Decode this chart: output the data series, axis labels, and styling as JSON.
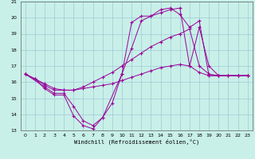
{
  "xlabel": "Windchill (Refroidissement éolien,°C)",
  "background_color": "#c8f0e8",
  "grid_color": "#a0c8d8",
  "line_color": "#990099",
  "xlim": [
    -0.5,
    23.5
  ],
  "ylim": [
    13,
    21
  ],
  "yticks": [
    13,
    14,
    15,
    16,
    17,
    18,
    19,
    20,
    21
  ],
  "xticks": [
    0,
    1,
    2,
    3,
    4,
    5,
    6,
    7,
    8,
    9,
    10,
    11,
    12,
    13,
    14,
    15,
    16,
    17,
    18,
    19,
    20,
    21,
    22,
    23
  ],
  "series": [
    {
      "x": [
        0,
        1,
        2,
        3,
        4,
        5,
        6,
        7,
        8,
        9,
        10,
        11,
        12,
        13,
        14,
        15,
        16,
        17,
        18,
        19,
        20,
        21,
        22,
        23
      ],
      "y": [
        16.5,
        16.2,
        15.6,
        15.2,
        15.2,
        13.9,
        13.3,
        13.1,
        13.8,
        14.7,
        16.5,
        19.7,
        20.1,
        20.1,
        20.5,
        20.6,
        20.2,
        19.4,
        19.8,
        16.4,
        16.4,
        16.4,
        16.4,
        16.4
      ]
    },
    {
      "x": [
        0,
        1,
        2,
        3,
        4,
        5,
        6,
        7,
        8,
        9,
        10,
        11,
        12,
        13,
        14,
        15,
        16,
        17,
        18,
        19,
        20,
        21,
        22,
        23
      ],
      "y": [
        16.5,
        16.2,
        15.8,
        15.5,
        15.5,
        15.5,
        15.7,
        16.0,
        16.3,
        16.6,
        17.0,
        17.4,
        17.8,
        18.2,
        18.5,
        18.8,
        19.0,
        19.3,
        17.0,
        16.5,
        16.4,
        16.4,
        16.4,
        16.4
      ]
    },
    {
      "x": [
        0,
        1,
        2,
        3,
        4,
        5,
        6,
        7,
        8,
        9,
        10,
        11,
        12,
        13,
        14,
        15,
        16,
        17,
        18,
        19,
        20,
        21,
        22,
        23
      ],
      "y": [
        16.5,
        16.2,
        15.9,
        15.6,
        15.5,
        15.5,
        15.6,
        15.7,
        15.8,
        15.9,
        16.1,
        16.3,
        16.5,
        16.7,
        16.9,
        17.0,
        17.1,
        17.0,
        16.6,
        16.4,
        16.4,
        16.4,
        16.4,
        16.4
      ]
    },
    {
      "x": [
        0,
        2,
        3,
        4,
        5,
        6,
        7,
        8,
        10,
        11,
        12,
        13,
        14,
        15,
        16,
        17,
        18,
        19,
        20,
        21,
        22,
        23
      ],
      "y": [
        16.5,
        15.7,
        15.3,
        15.3,
        14.5,
        13.6,
        13.3,
        13.8,
        16.5,
        18.1,
        19.8,
        20.1,
        20.3,
        20.5,
        20.6,
        17.0,
        19.4,
        17.0,
        16.4,
        16.4,
        16.4,
        16.4
      ]
    }
  ]
}
